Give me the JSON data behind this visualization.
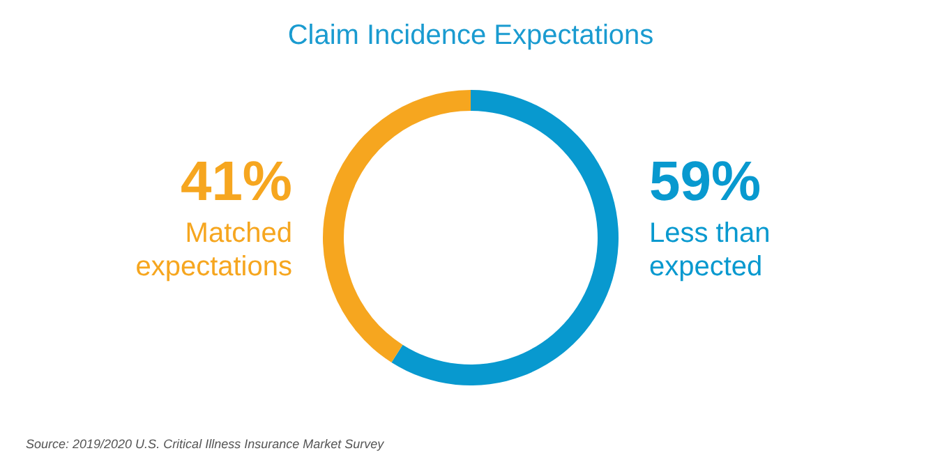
{
  "chart_data": {
    "type": "donut",
    "title": "Claim Incidence Expectations",
    "categories": [
      "Less than\nexpected",
      "Matched\nexpectations"
    ],
    "values": [
      59,
      41
    ],
    "value_labels": [
      "59%",
      "41%"
    ],
    "colors": [
      "#0899cf",
      "#f6a61f"
    ],
    "annotations": [
      "Source: 2019/2020 U.S. Critical Illness Insurance Market Survey"
    ]
  }
}
